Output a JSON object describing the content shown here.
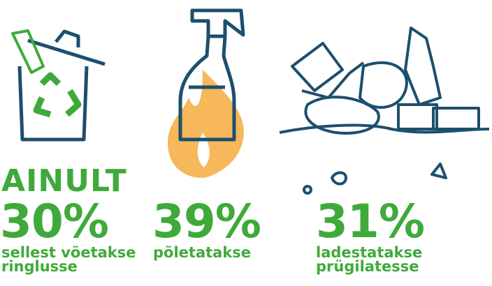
{
  "items": [
    {
      "prefix": "AINULT",
      "value": "30%",
      "caption_lines": [
        "sellest võetakse",
        "ringlusse"
      ]
    },
    {
      "value": "39%",
      "caption_lines": [
        "põletatakse"
      ]
    },
    {
      "value": "31%",
      "caption_lines": [
        "ladestatakse",
        "prügilatesse"
      ]
    }
  ]
}
